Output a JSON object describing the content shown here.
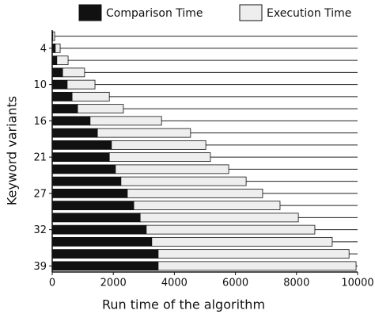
{
  "chart_data": {
    "type": "stacked-barh",
    "xlabel": "Run time of the algorithm",
    "ylabel": "Keyword variants",
    "categories": [
      null,
      "4",
      null,
      null,
      "10",
      null,
      null,
      "16",
      null,
      null,
      "21",
      null,
      null,
      "27",
      null,
      null,
      "32",
      null,
      null,
      "39"
    ],
    "series": [
      {
        "name": "Comparison Time",
        "color": "#111111",
        "values": [
          20,
          100,
          150,
          340,
          490,
          650,
          830,
          1240,
          1480,
          1940,
          1870,
          2070,
          2250,
          2460,
          2670,
          2880,
          3080,
          3260,
          3470,
          3470
        ]
      },
      {
        "name": "Execution Time",
        "color": "#eeeeee",
        "values": [
          60,
          160,
          370,
          720,
          910,
          1220,
          1500,
          2340,
          3050,
          3090,
          3310,
          3710,
          4100,
          4430,
          4790,
          5180,
          5520,
          5910,
          6250,
          6480
        ]
      }
    ],
    "xlim": [
      0,
      10000
    ],
    "xticks": [
      0,
      2000,
      4000,
      6000,
      8000,
      10000
    ],
    "grid": true
  }
}
